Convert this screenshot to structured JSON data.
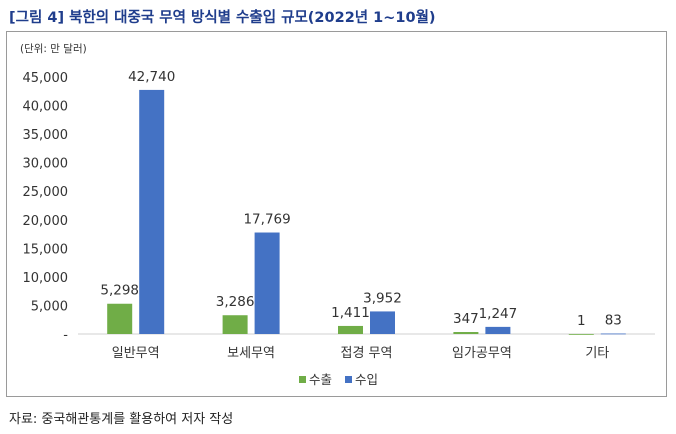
{
  "figure": {
    "title": "[그림 4] 북한의 대중국 무역 방식별 수출입 규모(2022년 1~10월)",
    "source": "자료: 중국해관통계를 활용하여 저자 작성"
  },
  "chart_data": {
    "type": "bar",
    "unit_note": "(단위: 만 달러)",
    "categories": [
      "일반무역",
      "보세무역",
      "접경 무역",
      "임가공무역",
      "기타"
    ],
    "series": [
      {
        "name": "수출",
        "color": "#70ad47",
        "values": [
          5298,
          3286,
          1411,
          347,
          1
        ]
      },
      {
        "name": "수입",
        "color": "#4472c4",
        "values": [
          42740,
          17769,
          3952,
          1247,
          83
        ]
      }
    ],
    "yticks": [
      "-",
      "5,000",
      "10,000",
      "15,000",
      "20,000",
      "25,000",
      "30,000",
      "35,000",
      "40,000",
      "45,000"
    ],
    "ylim": [
      0,
      45000
    ],
    "grid": false,
    "legend": "bottom",
    "data_labels": [
      [
        "5,298",
        "3,286",
        "1,411",
        "347",
        "1"
      ],
      [
        "42,740",
        "17,769",
        "3,952",
        "1,247",
        "83"
      ]
    ]
  }
}
